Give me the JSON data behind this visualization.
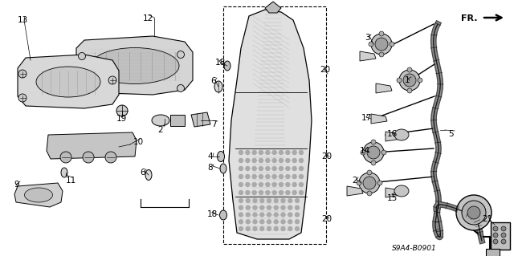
{
  "background_color": "#ffffff",
  "diagram_code": "S9A4-B0901",
  "figsize": [
    6.4,
    3.19
  ],
  "dpi": 100,
  "fontsize": 7.5
}
